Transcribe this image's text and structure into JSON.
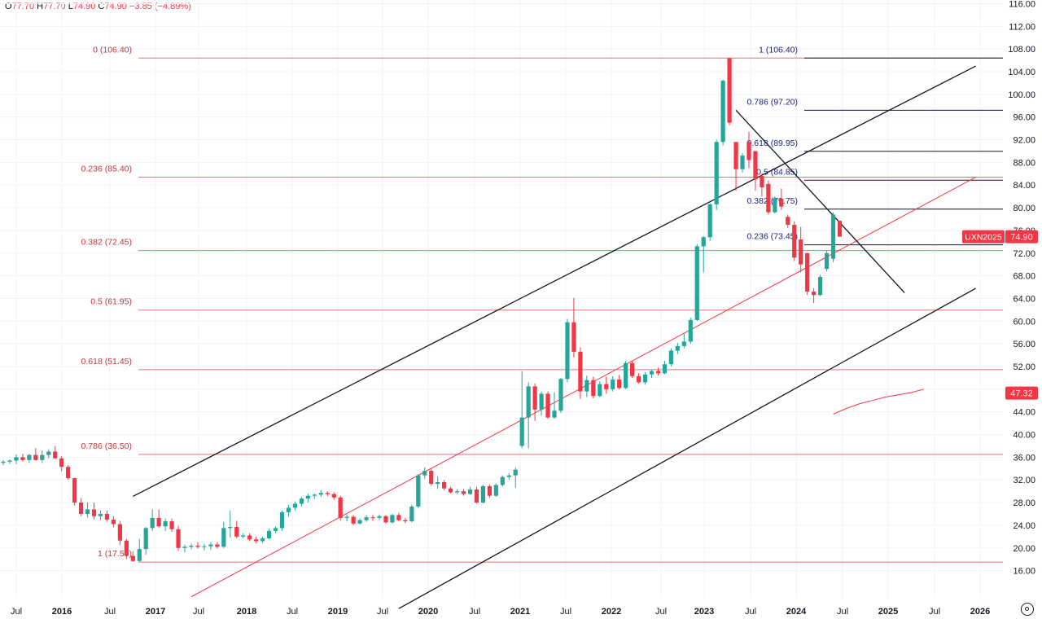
{
  "ohlc_bar": {
    "open_label": "O",
    "open_value": "77.70",
    "high_label": "H",
    "high_value": "77.70",
    "low_label": "L",
    "low_value": "74.90",
    "close_label": "C",
    "close_value": "74.90",
    "change": "−3.85 (−4.89%)"
  },
  "colors": {
    "up": "#26a69a",
    "down": "#f23645",
    "fib_left": "#e57373",
    "fib_right": "#131722",
    "fib_left_label": "#c2353d",
    "fib_right_label": "#1a237e",
    "trend": "#131722",
    "midline": "#f23645",
    "ma": "#f23645"
  },
  "chart_data": {
    "type": "candlestick",
    "interval": "monthly",
    "ylim": [
      14,
      117
    ],
    "y_ticks": [
      "16.00",
      "20.00",
      "24.00",
      "28.00",
      "32.00",
      "36.00",
      "40.00",
      "44.00",
      "48.00",
      "52.00",
      "56.00",
      "60.00",
      "64.00",
      "68.00",
      "72.00",
      "76.00",
      "80.00",
      "84.00",
      "88.00",
      "92.00",
      "96.00",
      "100.00",
      "104.00",
      "108.00",
      "112.00",
      "116.00"
    ],
    "x_ticks": [
      "Jul",
      "2016",
      "Jul",
      "2017",
      "Jul",
      "2018",
      "Jul",
      "2019",
      "Jul",
      "2020",
      "Jul",
      "2021",
      "Jul",
      "2022",
      "Jul",
      "2023",
      "Jul",
      "2024",
      "Jul",
      "2025",
      "Jul",
      "2026"
    ],
    "candles": [
      {
        "o": 35.0,
        "h": 35.5,
        "l": 34.6,
        "c": 35.2
      },
      {
        "o": 35.2,
        "h": 35.6,
        "l": 34.8,
        "c": 35.4
      },
      {
        "o": 35.4,
        "h": 36.5,
        "l": 34.8,
        "c": 36.0
      },
      {
        "o": 36.0,
        "h": 36.6,
        "l": 35.2,
        "c": 35.5
      },
      {
        "o": 35.5,
        "h": 36.6,
        "l": 35.0,
        "c": 36.4
      },
      {
        "o": 36.4,
        "h": 37.6,
        "l": 35.4,
        "c": 35.5
      },
      {
        "o": 35.5,
        "h": 37.2,
        "l": 35.0,
        "c": 36.4
      },
      {
        "o": 36.4,
        "h": 37.4,
        "l": 35.8,
        "c": 37.0
      },
      {
        "o": 37.0,
        "h": 38.0,
        "l": 35.8,
        "c": 35.8
      },
      {
        "o": 35.8,
        "h": 36.2,
        "l": 33.5,
        "c": 34.3
      },
      {
        "o": 34.3,
        "h": 34.6,
        "l": 32.0,
        "c": 32.3
      },
      {
        "o": 32.3,
        "h": 32.4,
        "l": 27.5,
        "c": 28.0
      },
      {
        "o": 28.0,
        "h": 28.8,
        "l": 25.6,
        "c": 26.0
      },
      {
        "o": 26.0,
        "h": 28.0,
        "l": 25.4,
        "c": 26.8
      },
      {
        "o": 26.8,
        "h": 28.0,
        "l": 25.0,
        "c": 25.6
      },
      {
        "o": 25.6,
        "h": 26.6,
        "l": 24.9,
        "c": 26.0
      },
      {
        "o": 26.0,
        "h": 26.6,
        "l": 24.6,
        "c": 25.0
      },
      {
        "o": 25.0,
        "h": 25.6,
        "l": 23.6,
        "c": 24.2
      },
      {
        "o": 24.2,
        "h": 24.8,
        "l": 20.5,
        "c": 21.3
      },
      {
        "o": 21.3,
        "h": 21.6,
        "l": 18.0,
        "c": 18.6
      },
      {
        "o": 18.6,
        "h": 19.4,
        "l": 17.5,
        "c": 17.7
      },
      {
        "o": 17.7,
        "h": 21.6,
        "l": 17.5,
        "c": 19.8
      },
      {
        "o": 19.8,
        "h": 23.7,
        "l": 18.8,
        "c": 23.5
      },
      {
        "o": 23.5,
        "h": 26.8,
        "l": 23.0,
        "c": 25.3
      },
      {
        "o": 25.3,
        "h": 26.8,
        "l": 23.6,
        "c": 23.8
      },
      {
        "o": 23.8,
        "h": 25.2,
        "l": 23.0,
        "c": 24.7
      },
      {
        "o": 24.7,
        "h": 25.2,
        "l": 22.8,
        "c": 23.3
      },
      {
        "o": 23.3,
        "h": 23.9,
        "l": 19.5,
        "c": 20.0
      },
      {
        "o": 20.0,
        "h": 20.6,
        "l": 19.2,
        "c": 20.2
      },
      {
        "o": 20.2,
        "h": 20.8,
        "l": 19.8,
        "c": 20.4
      },
      {
        "o": 20.4,
        "h": 21.0,
        "l": 19.9,
        "c": 20.2
      },
      {
        "o": 20.2,
        "h": 20.7,
        "l": 19.6,
        "c": 20.3
      },
      {
        "o": 20.3,
        "h": 21.0,
        "l": 19.7,
        "c": 20.6
      },
      {
        "o": 20.6,
        "h": 21.0,
        "l": 19.9,
        "c": 20.2
      },
      {
        "o": 20.2,
        "h": 24.6,
        "l": 20.0,
        "c": 23.5
      },
      {
        "o": 23.5,
        "h": 26.6,
        "l": 21.8,
        "c": 23.7
      },
      {
        "o": 23.7,
        "h": 24.8,
        "l": 21.7,
        "c": 22.0
      },
      {
        "o": 22.0,
        "h": 22.6,
        "l": 21.7,
        "c": 22.2
      },
      {
        "o": 22.2,
        "h": 22.6,
        "l": 21.2,
        "c": 21.5
      },
      {
        "o": 21.5,
        "h": 22.0,
        "l": 20.8,
        "c": 21.2
      },
      {
        "o": 21.2,
        "h": 22.0,
        "l": 20.9,
        "c": 21.7
      },
      {
        "o": 21.7,
        "h": 23.4,
        "l": 21.5,
        "c": 23.0
      },
      {
        "o": 23.0,
        "h": 23.8,
        "l": 22.6,
        "c": 23.5
      },
      {
        "o": 23.5,
        "h": 26.6,
        "l": 23.0,
        "c": 26.3
      },
      {
        "o": 26.3,
        "h": 27.6,
        "l": 25.5,
        "c": 27.1
      },
      {
        "o": 27.1,
        "h": 28.2,
        "l": 26.6,
        "c": 27.8
      },
      {
        "o": 27.8,
        "h": 29.0,
        "l": 27.3,
        "c": 28.7
      },
      {
        "o": 28.7,
        "h": 29.6,
        "l": 28.0,
        "c": 29.2
      },
      {
        "o": 29.2,
        "h": 29.6,
        "l": 28.6,
        "c": 29.4
      },
      {
        "o": 29.4,
        "h": 30.2,
        "l": 29.0,
        "c": 29.7
      },
      {
        "o": 29.7,
        "h": 30.0,
        "l": 29.1,
        "c": 29.5
      },
      {
        "o": 29.5,
        "h": 29.8,
        "l": 28.5,
        "c": 28.9
      },
      {
        "o": 28.9,
        "h": 29.2,
        "l": 24.8,
        "c": 25.3
      },
      {
        "o": 25.3,
        "h": 25.9,
        "l": 24.7,
        "c": 25.5
      },
      {
        "o": 25.5,
        "h": 25.8,
        "l": 24.0,
        "c": 24.3
      },
      {
        "o": 24.3,
        "h": 25.2,
        "l": 24.1,
        "c": 24.9
      },
      {
        "o": 24.9,
        "h": 25.8,
        "l": 24.6,
        "c": 25.4
      },
      {
        "o": 25.4,
        "h": 25.8,
        "l": 24.8,
        "c": 25.3
      },
      {
        "o": 25.3,
        "h": 25.9,
        "l": 24.9,
        "c": 25.6
      },
      {
        "o": 25.6,
        "h": 25.8,
        "l": 24.3,
        "c": 24.5
      },
      {
        "o": 24.5,
        "h": 26.0,
        "l": 24.3,
        "c": 25.8
      },
      {
        "o": 25.8,
        "h": 26.2,
        "l": 24.7,
        "c": 24.9
      },
      {
        "o": 24.9,
        "h": 25.3,
        "l": 24.4,
        "c": 24.7
      },
      {
        "o": 24.7,
        "h": 27.6,
        "l": 24.5,
        "c": 27.3
      },
      {
        "o": 27.3,
        "h": 33.0,
        "l": 27.0,
        "c": 32.8
      },
      {
        "o": 32.8,
        "h": 34.2,
        "l": 32.2,
        "c": 33.6
      },
      {
        "o": 33.6,
        "h": 34.0,
        "l": 31.0,
        "c": 31.3
      },
      {
        "o": 31.3,
        "h": 32.6,
        "l": 30.4,
        "c": 31.6
      },
      {
        "o": 31.6,
        "h": 32.0,
        "l": 30.2,
        "c": 30.5
      },
      {
        "o": 30.5,
        "h": 30.8,
        "l": 29.6,
        "c": 29.8
      },
      {
        "o": 29.8,
        "h": 30.4,
        "l": 29.5,
        "c": 30.0
      },
      {
        "o": 30.0,
        "h": 30.4,
        "l": 29.2,
        "c": 29.5
      },
      {
        "o": 29.5,
        "h": 30.8,
        "l": 29.4,
        "c": 30.3
      },
      {
        "o": 30.3,
        "h": 30.8,
        "l": 27.8,
        "c": 28.0
      },
      {
        "o": 28.0,
        "h": 31.2,
        "l": 27.8,
        "c": 30.9
      },
      {
        "o": 30.9,
        "h": 31.2,
        "l": 28.8,
        "c": 29.2
      },
      {
        "o": 29.2,
        "h": 31.4,
        "l": 29.0,
        "c": 31.1
      },
      {
        "o": 31.1,
        "h": 32.8,
        "l": 30.8,
        "c": 32.5
      },
      {
        "o": 32.5,
        "h": 33.2,
        "l": 32.0,
        "c": 32.8
      },
      {
        "o": 32.8,
        "h": 34.2,
        "l": 30.6,
        "c": 33.8
      },
      {
        "o": 38.0,
        "h": 51.2,
        "l": 37.6,
        "c": 43.0
      },
      {
        "o": 43.0,
        "h": 49.2,
        "l": 37.6,
        "c": 48.5
      },
      {
        "o": 48.5,
        "h": 49.0,
        "l": 42.4,
        "c": 44.4
      },
      {
        "o": 44.4,
        "h": 47.6,
        "l": 43.4,
        "c": 47.2
      },
      {
        "o": 47.2,
        "h": 47.6,
        "l": 42.8,
        "c": 43.0
      },
      {
        "o": 43.0,
        "h": 47.4,
        "l": 42.8,
        "c": 44.2
      },
      {
        "o": 44.2,
        "h": 50.0,
        "l": 43.8,
        "c": 49.8
      },
      {
        "o": 49.8,
        "h": 60.4,
        "l": 49.2,
        "c": 59.8
      },
      {
        "o": 59.8,
        "h": 64.1,
        "l": 53.6,
        "c": 54.6
      },
      {
        "o": 54.6,
        "h": 55.4,
        "l": 46.3,
        "c": 47.6
      },
      {
        "o": 47.6,
        "h": 50.4,
        "l": 46.6,
        "c": 49.6
      },
      {
        "o": 49.6,
        "h": 50.2,
        "l": 46.4,
        "c": 46.8
      },
      {
        "o": 46.8,
        "h": 49.4,
        "l": 46.6,
        "c": 48.9
      },
      {
        "o": 48.9,
        "h": 50.2,
        "l": 47.2,
        "c": 48.0
      },
      {
        "o": 48.0,
        "h": 50.3,
        "l": 47.6,
        "c": 49.7
      },
      {
        "o": 49.7,
        "h": 50.5,
        "l": 48.0,
        "c": 48.2
      },
      {
        "o": 48.2,
        "h": 53.0,
        "l": 48.0,
        "c": 52.6
      },
      {
        "o": 52.6,
        "h": 53.0,
        "l": 50.0,
        "c": 50.3
      },
      {
        "o": 50.3,
        "h": 50.8,
        "l": 49.0,
        "c": 49.2
      },
      {
        "o": 49.2,
        "h": 51.0,
        "l": 48.8,
        "c": 50.6
      },
      {
        "o": 50.6,
        "h": 51.5,
        "l": 50.0,
        "c": 51.2
      },
      {
        "o": 51.2,
        "h": 51.8,
        "l": 50.4,
        "c": 50.8
      },
      {
        "o": 50.8,
        "h": 53.0,
        "l": 50.6,
        "c": 52.4
      },
      {
        "o": 52.4,
        "h": 55.2,
        "l": 52.0,
        "c": 54.8
      },
      {
        "o": 54.8,
        "h": 56.2,
        "l": 54.2,
        "c": 55.6
      },
      {
        "o": 55.6,
        "h": 57.8,
        "l": 55.2,
        "c": 56.4
      },
      {
        "o": 56.4,
        "h": 60.6,
        "l": 56.0,
        "c": 60.2
      },
      {
        "o": 60.2,
        "h": 73.6,
        "l": 60.0,
        "c": 73.2
      },
      {
        "o": 73.2,
        "h": 75.0,
        "l": 68.6,
        "c": 74.8
      },
      {
        "o": 74.8,
        "h": 80.8,
        "l": 74.2,
        "c": 80.6
      },
      {
        "o": 80.6,
        "h": 92.0,
        "l": 79.6,
        "c": 91.6
      },
      {
        "o": 91.6,
        "h": 102.6,
        "l": 91.0,
        "c": 102.4
      },
      {
        "o": 106.4,
        "h": 106.4,
        "l": 94.6,
        "c": 95.0
      },
      {
        "o": 91.6,
        "h": 91.6,
        "l": 83.0,
        "c": 86.8
      },
      {
        "o": 86.8,
        "h": 89.6,
        "l": 86.2,
        "c": 89.2
      },
      {
        "o": 91.6,
        "h": 93.4,
        "l": 87.0,
        "c": 88.4
      },
      {
        "o": 90.0,
        "h": 90.0,
        "l": 83.0,
        "c": 85.0
      },
      {
        "o": 85.6,
        "h": 86.0,
        "l": 82.0,
        "c": 83.6
      },
      {
        "o": 84.2,
        "h": 84.8,
        "l": 78.8,
        "c": 79.2
      },
      {
        "o": 79.2,
        "h": 82.0,
        "l": 79.0,
        "c": 81.6
      },
      {
        "o": 81.6,
        "h": 83.4,
        "l": 79.6,
        "c": 80.2
      },
      {
        "o": 78.4,
        "h": 78.8,
        "l": 76.4,
        "c": 77.0
      },
      {
        "o": 77.0,
        "h": 77.6,
        "l": 70.6,
        "c": 71.2
      },
      {
        "o": 74.4,
        "h": 76.6,
        "l": 68.6,
        "c": 70.0
      },
      {
        "o": 72.0,
        "h": 72.0,
        "l": 64.6,
        "c": 65.2
      },
      {
        "o": 65.2,
        "h": 65.8,
        "l": 63.2,
        "c": 64.6
      },
      {
        "o": 64.6,
        "h": 68.2,
        "l": 64.4,
        "c": 67.8
      },
      {
        "o": 69.2,
        "h": 72.4,
        "l": 68.8,
        "c": 72.0
      },
      {
        "o": 71.0,
        "h": 79.2,
        "l": 70.4,
        "c": 78.8
      },
      {
        "o": 77.7,
        "h": 77.7,
        "l": 74.9,
        "c": 74.9
      }
    ],
    "fib_left": [
      {
        "label": "0 (106.40)",
        "price": 106.4
      },
      {
        "label": "0.236 (85.40)",
        "price": 85.4
      },
      {
        "label": "0.382 (72.45)",
        "price": 72.45
      },
      {
        "label": "0.5 (61.95)",
        "price": 61.95
      },
      {
        "label": "0.618 (51.45)",
        "price": 51.45
      },
      {
        "label": "0.786 (36.50)",
        "price": 36.5
      },
      {
        "label": "1 (17.50)",
        "price": 17.5
      }
    ],
    "fib_right": [
      {
        "label": "1 (106.40)",
        "price": 106.4
      },
      {
        "label": "0.786 (97.20)",
        "price": 97.2
      },
      {
        "label": "0.618 (89.95)",
        "price": 89.95
      },
      {
        "label": "0.5 (84.85)",
        "price": 84.85
      },
      {
        "label": "0.382 (79.75)",
        "price": 79.75
      },
      {
        "label": "0.236 (73.45)",
        "price": 73.45
      }
    ],
    "channel_upper": [
      {
        "i": 20,
        "p": 29.1
      },
      {
        "i": 150,
        "p": 105.0
      }
    ],
    "channel_lower": [
      {
        "i": 61,
        "p": 9.3
      },
      {
        "i": 150,
        "p": 65.8
      }
    ],
    "channel_mid": [
      {
        "i": 29,
        "p": 11.4
      },
      {
        "i": 150,
        "p": 85.4
      }
    ],
    "downtrend_line": [
      {
        "i": 113,
        "p": 97.2
      },
      {
        "i": 139,
        "p": 65.0
      }
    ],
    "moving_average": [
      {
        "i": 128,
        "p": 43.6
      },
      {
        "i": 130,
        "p": 44.6
      },
      {
        "i": 132,
        "p": 45.4
      },
      {
        "i": 134,
        "p": 46.0
      },
      {
        "i": 136,
        "p": 46.6
      },
      {
        "i": 138,
        "p": 47.0
      },
      {
        "i": 140,
        "p": 47.4
      },
      {
        "i": 142,
        "p": 48.0
      }
    ],
    "price_labels": [
      {
        "text": "74.90",
        "price": 74.9,
        "bg": "#f23645"
      },
      {
        "text": "47.32",
        "price": 47.32,
        "bg": "#f23645"
      }
    ],
    "symbol_tag": "UXN2025"
  }
}
